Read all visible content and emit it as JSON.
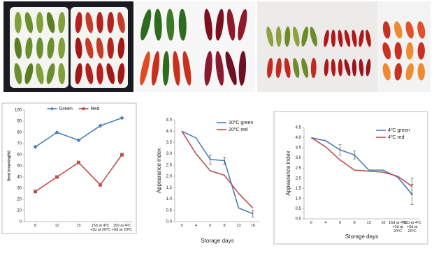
{
  "chart_data": [
    {
      "type": "line",
      "y_label": "Seed browning(%)",
      "categories": [
        "8",
        "12",
        "15",
        "15d at 4ºC +3d at 20ºC",
        "15d at 4ºC +6d at 20ºC"
      ],
      "series": [
        {
          "name": "Green",
          "color": "#4a7ebb",
          "marker": "diamond",
          "values": [
            67,
            80,
            73,
            86,
            93
          ]
        },
        {
          "name": "Red",
          "color": "#c0504d",
          "marker": "square",
          "values": [
            27,
            40,
            53,
            33,
            60
          ]
        }
      ],
      "ylim": [
        0,
        100
      ],
      "yticks": [
        0,
        10,
        20,
        30,
        40,
        50,
        60,
        70,
        80,
        90,
        100
      ],
      "legend": "top"
    },
    {
      "type": "line",
      "y_label": "Appearance index",
      "x_label": "Storage days",
      "categories": [
        "0",
        "4",
        "6",
        "8",
        "13",
        "16"
      ],
      "series": [
        {
          "name": "20ºC green",
          "color": "#4a7ebb",
          "values": [
            4.0,
            3.7,
            2.75,
            2.7,
            0.6,
            0.35
          ],
          "errors": [
            null,
            null,
            0.2,
            0.15,
            null,
            0.15
          ]
        },
        {
          "name": "20ºC red",
          "color": "#c0504d",
          "values": [
            4.0,
            3.0,
            2.25,
            2.05,
            1.25,
            0.6
          ]
        }
      ],
      "ylim": [
        0,
        4.5
      ],
      "yticks": [
        {
          "value": 0,
          "label": "0.0"
        },
        0.5,
        {
          "value": 1,
          "label": "1.0"
        },
        1.5,
        {
          "value": 2,
          "label": "2.0"
        },
        2.5,
        {
          "value": 3,
          "label": "3.0"
        },
        3.5,
        {
          "value": 4,
          "label": "4.0"
        },
        4.5
      ],
      "legend": "upper right"
    },
    {
      "type": "line",
      "y_label": "Appearance index",
      "x_label": "Storage days",
      "categories": [
        "0",
        "4",
        "6",
        "8",
        "13",
        "16",
        "16d at 4ºC +3d at 20ºC",
        "16d at 4ºC +6d at 20ºC"
      ],
      "series": [
        {
          "name": "4ºC green",
          "color": "#4a7ebb",
          "values": [
            4.0,
            3.85,
            3.4,
            3.15,
            2.4,
            2.4,
            2.05,
            1.2
          ],
          "errors": [
            null,
            null,
            0.25,
            0.2,
            null,
            null,
            null,
            0.5
          ]
        },
        {
          "name": "4ºC red",
          "color": "#c0504d",
          "values": [
            4.0,
            3.55,
            2.9,
            2.4,
            2.35,
            2.3,
            2.1,
            1.6
          ],
          "errors": [
            null,
            null,
            null,
            null,
            null,
            null,
            null,
            0.4
          ]
        }
      ],
      "ylim": [
        0,
        4.5
      ],
      "yticks": [
        {
          "value": 0,
          "label": "0.0"
        },
        0.5,
        {
          "value": 1,
          "label": "1.0"
        },
        1.5,
        {
          "value": 2,
          "label": "2.0"
        },
        2.5,
        {
          "value": 3,
          "label": "3.0"
        },
        3.5,
        {
          "value": 4,
          "label": "4.0"
        },
        4.5
      ],
      "legend": "upper right"
    }
  ]
}
